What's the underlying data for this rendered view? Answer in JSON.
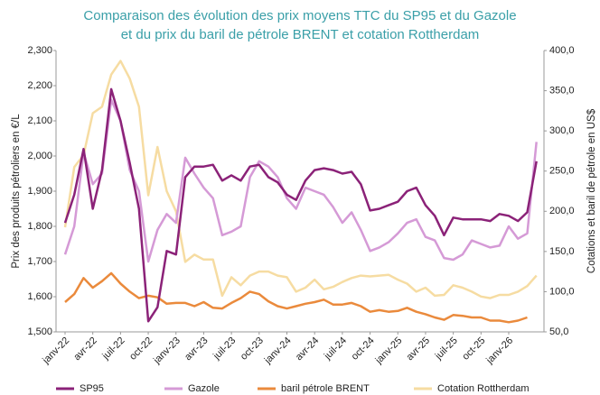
{
  "chart_data": {
    "type": "line",
    "title": [
      "Comparaison des évolution des prix moyens TTC du SP95 et du Gazole",
      "et du prix du baril de pétrole BRENT et cotation Rottherdam"
    ],
    "y_label": "Prix des produits pétroliers en €/L",
    "y2_label": "Cotations et baril de pétrole en US$",
    "categories": [
      "janv-22",
      null,
      null,
      "avr-22",
      null,
      null,
      "juil-22",
      null,
      null,
      "oct-22",
      null,
      null,
      "janv-23",
      null,
      null,
      "avr-23",
      null,
      null,
      "juil-23",
      null,
      null,
      "oct-23",
      null,
      null,
      "janv-24",
      null,
      null,
      "avr-24",
      null,
      null,
      "juil-24",
      null,
      null,
      "oct-24",
      null,
      null,
      "janv-25",
      null,
      null,
      "avr-25",
      null,
      null,
      "juil-25",
      null,
      null,
      "oct-25",
      null,
      null,
      "janv-26",
      null,
      null,
      null
    ],
    "ylim": [
      1.5,
      2.3
    ],
    "yticks": [
      {
        "value": 1.5,
        "label": "1,500"
      },
      {
        "value": 1.6,
        "label": "1,600"
      },
      {
        "value": 1.7,
        "label": "1,700"
      },
      {
        "value": 1.8,
        "label": "1,800"
      },
      {
        "value": 1.9,
        "label": "1,900"
      },
      {
        "value": 2.0,
        "label": "2,000"
      },
      {
        "value": 2.1,
        "label": "2,100"
      },
      {
        "value": 2.2,
        "label": "2,200"
      },
      {
        "value": 2.3,
        "label": "2,300"
      }
    ],
    "y2lim": [
      50,
      400
    ],
    "y2ticks": [
      {
        "value": 50,
        "label": "50,0"
      },
      {
        "value": 100,
        "label": "100,0"
      },
      {
        "value": 150,
        "label": "150,0"
      },
      {
        "value": 200,
        "label": "200,0"
      },
      {
        "value": 250,
        "label": "250,0"
      },
      {
        "value": 300,
        "label": "300,0"
      },
      {
        "value": 350,
        "label": "350,0"
      },
      {
        "value": 400,
        "label": "400,0"
      }
    ],
    "series": [
      {
        "name": "SP95",
        "color": "#8b2278",
        "values": [
          1.81,
          1.89,
          2.02,
          1.85,
          1.96,
          2.19,
          2.1,
          1.98,
          1.85,
          1.53,
          1.57,
          1.73,
          1.72,
          1.94,
          1.97,
          1.97,
          1.975,
          1.93,
          1.945,
          1.93,
          1.97,
          1.975,
          1.94,
          1.925,
          1.89,
          1.875,
          1.93,
          1.96,
          1.965,
          1.96,
          1.95,
          1.955,
          1.92,
          1.845,
          1.85,
          1.86,
          1.87,
          1.9,
          1.91,
          1.86,
          1.83,
          1.775,
          1.825,
          1.82,
          1.82,
          1.82,
          1.815,
          1.835,
          1.83,
          1.815,
          1.84,
          1.985
        ]
      },
      {
        "name": "Gazole",
        "color": "#d59ad6",
        "values": [
          1.72,
          1.8,
          2.01,
          1.92,
          1.95,
          2.16,
          2.1,
          1.96,
          1.9,
          1.7,
          1.79,
          1.835,
          1.81,
          1.995,
          1.95,
          1.91,
          1.88,
          1.775,
          1.785,
          1.8,
          1.94,
          1.985,
          1.97,
          1.94,
          1.88,
          1.85,
          1.91,
          1.9,
          1.89,
          1.855,
          1.81,
          1.84,
          1.79,
          1.73,
          1.74,
          1.755,
          1.78,
          1.81,
          1.82,
          1.77,
          1.76,
          1.71,
          1.705,
          1.72,
          1.76,
          1.75,
          1.74,
          1.745,
          1.8,
          1.765,
          1.78,
          2.04
        ]
      },
      {
        "name": "baril pétrole BRENT",
        "color": "#ea8a3c",
        "axis": "y2",
        "values": [
          87,
          97,
          117,
          105,
          113,
          123,
          110,
          100,
          92,
          95,
          93,
          85,
          86,
          86,
          82,
          87,
          80,
          79,
          86,
          92,
          100,
          97,
          88,
          82,
          79,
          82,
          85,
          87,
          90,
          84,
          84,
          86,
          82,
          75,
          77,
          75,
          76,
          80,
          75,
          72,
          68,
          65,
          71,
          70,
          68,
          68,
          64,
          64,
          62,
          64,
          68,
          null
        ]
      },
      {
        "name": "Cotation Rottherdam",
        "color": "#f6dca2",
        "axis": "y2",
        "values": [
          180,
          255,
          270,
          322,
          330,
          370,
          387,
          365,
          330,
          220,
          280,
          225,
          200,
          137,
          146,
          140,
          140,
          95,
          118,
          108,
          120,
          125,
          125,
          120,
          118,
          100,
          105,
          115,
          103,
          106,
          112,
          117,
          120,
          119,
          120,
          121,
          115,
          110,
          100,
          105,
          95,
          96,
          108,
          105,
          100,
          94,
          92,
          96,
          96,
          100,
          107,
          120
        ]
      }
    ]
  }
}
